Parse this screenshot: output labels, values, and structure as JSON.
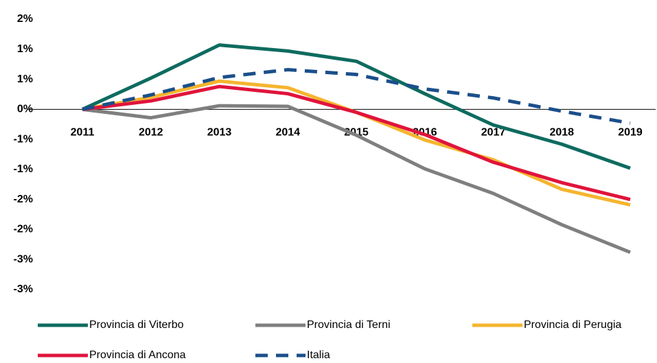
{
  "chart_data": {
    "type": "line",
    "categories": [
      "2011",
      "2012",
      "2013",
      "2014",
      "2015",
      "2016",
      "2017",
      "2018",
      "2019"
    ],
    "series": [
      {
        "name": "Provincia di Viterbo",
        "color": "#0e6b5f",
        "values": [
          0,
          0.52,
          1.07,
          0.97,
          0.8,
          0.26,
          -0.26,
          -0.58,
          -0.98
        ]
      },
      {
        "name": "Provincia di Terni",
        "color": "#7f7f7f",
        "values": [
          0,
          -0.14,
          0.06,
          0.05,
          -0.43,
          -0.99,
          -1.4,
          -1.92,
          -2.38
        ]
      },
      {
        "name": "Provincia di Perugia",
        "color": "#f5b52e",
        "values": [
          0,
          0.2,
          0.47,
          0.36,
          -0.05,
          -0.51,
          -0.84,
          -1.33,
          -1.59
        ]
      },
      {
        "name": "Provincia di Ancona",
        "color": "#e0143c",
        "values": [
          0,
          0.14,
          0.38,
          0.26,
          -0.05,
          -0.42,
          -0.88,
          -1.22,
          -1.5
        ]
      },
      {
        "name": "Italia",
        "color": "#1b4f8a",
        "dashed": true,
        "values": [
          0,
          0.24,
          0.53,
          0.66,
          0.58,
          0.34,
          0.19,
          -0.03,
          -0.23
        ]
      }
    ],
    "ylim": [
      -3,
      1.5
    ],
    "yticks": [
      {
        "value": 1.5,
        "label": "2%"
      },
      {
        "value": 1,
        "label": "1%"
      },
      {
        "value": 0.5,
        "label": "1%"
      },
      {
        "value": 0,
        "label": "0%"
      },
      {
        "value": -0.5,
        "label": "-1%"
      },
      {
        "value": -1,
        "label": "-1%"
      },
      {
        "value": -1.5,
        "label": "-2%"
      },
      {
        "value": -2,
        "label": "-2%"
      },
      {
        "value": -2.5,
        "label": "-3%"
      },
      {
        "value": -3,
        "label": "-3%"
      }
    ],
    "grid": false,
    "legend": "bottom"
  }
}
